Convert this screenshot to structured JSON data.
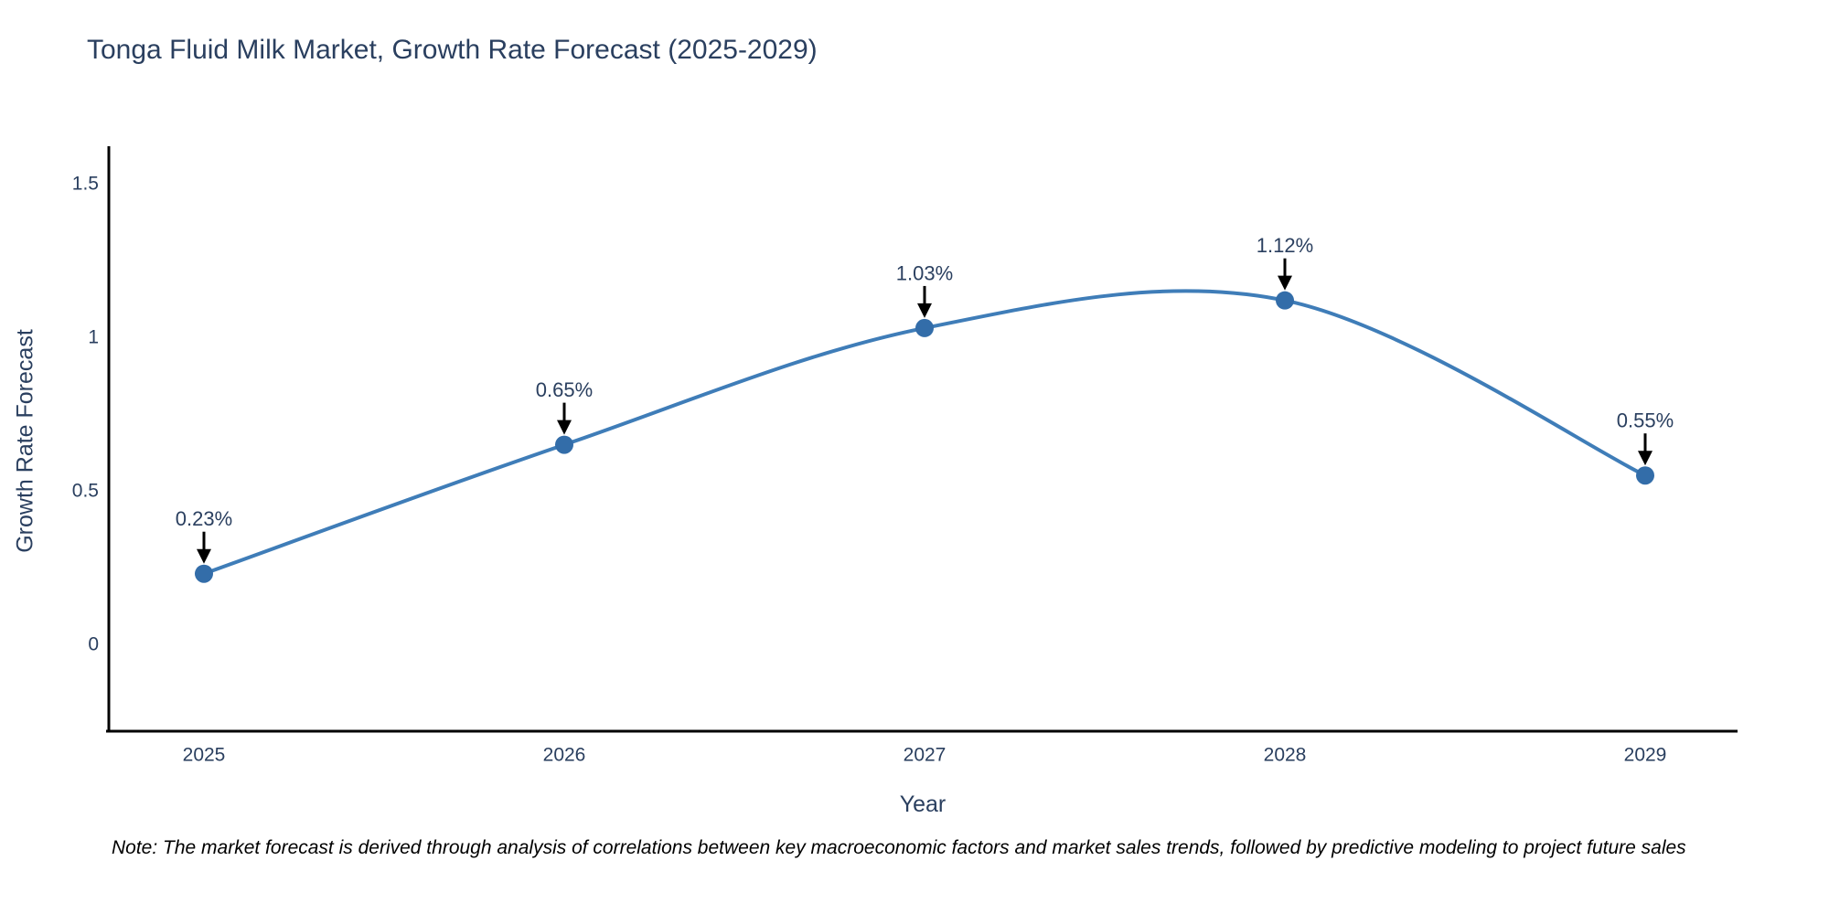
{
  "chart_data": {
    "type": "line",
    "title": "Tonga Fluid Milk Market, Growth Rate Forecast (2025-2029)",
    "xlabel": "Year",
    "ylabel": "Growth Rate Forecast",
    "x": [
      2025,
      2026,
      2027,
      2028,
      2029
    ],
    "values": [
      0.23,
      0.65,
      1.03,
      1.12,
      0.55
    ],
    "point_labels": [
      "0.23%",
      "0.65%",
      "1.03%",
      "1.12%",
      "0.55%"
    ],
    "x_tick_labels": [
      "2025",
      "2026",
      "2027",
      "2028",
      "2029"
    ],
    "y_tick_labels": [
      "0",
      "0.5",
      "1",
      "1.5"
    ],
    "y_tick_values": [
      0,
      0.5,
      1,
      1.5
    ],
    "ylim": [
      -0.28,
      1.62
    ],
    "line_shape": "spline",
    "grid": false,
    "legend": "none",
    "colors": {
      "line": "#3f7db8",
      "marker": "#336da9",
      "axis": "#000000",
      "text": "#2a3f5f",
      "annotation_arrow": "#000000",
      "background": "#ffffff"
    }
  },
  "footnote": {
    "text": "Note: The market forecast is derived through analysis of correlations between key macroeconomic factors and market sales trends, followed by predictive modeling to project future sales"
  }
}
